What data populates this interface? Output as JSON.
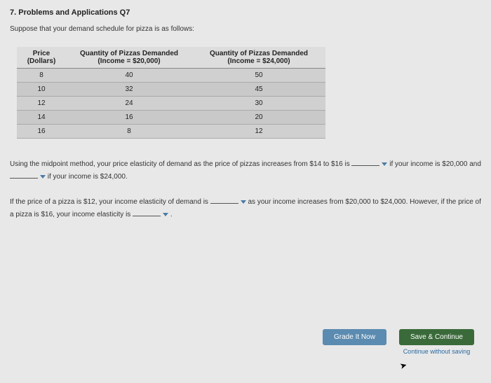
{
  "title": "7. Problems and Applications Q7",
  "intro": "Suppose that your demand schedule for pizza is as follows:",
  "table": {
    "headers": {
      "price_top": "Price",
      "price_sub": "(Dollars)",
      "qty1_top": "Quantity of Pizzas Demanded",
      "qty1_sub": "(Income = $20,000)",
      "qty2_top": "Quantity of Pizzas Demanded",
      "qty2_sub": "(Income = $24,000)"
    },
    "rows": [
      {
        "price": "8",
        "q1": "40",
        "q2": "50"
      },
      {
        "price": "10",
        "q1": "32",
        "q2": "45"
      },
      {
        "price": "12",
        "q1": "24",
        "q2": "30"
      },
      {
        "price": "14",
        "q1": "16",
        "q2": "20"
      },
      {
        "price": "16",
        "q1": "8",
        "q2": "12"
      }
    ]
  },
  "para1": {
    "p1": "Using the midpoint method, your price elasticity of demand as the price of pizzas increases from $14 to $16 is ",
    "p2": " if your income is $20,000 and ",
    "p3": " if your income is $24,000."
  },
  "para2": {
    "p1": "If the price of a pizza is $12, your income elasticity of demand is ",
    "p2": " as your income increases from $20,000 to $24,000. However, if the price of a pizza is $16, your income elasticity is ",
    "p3": " ."
  },
  "buttons": {
    "grade": "Grade It Now",
    "save": "Save & Continue",
    "continue_link": "Continue without saving"
  }
}
